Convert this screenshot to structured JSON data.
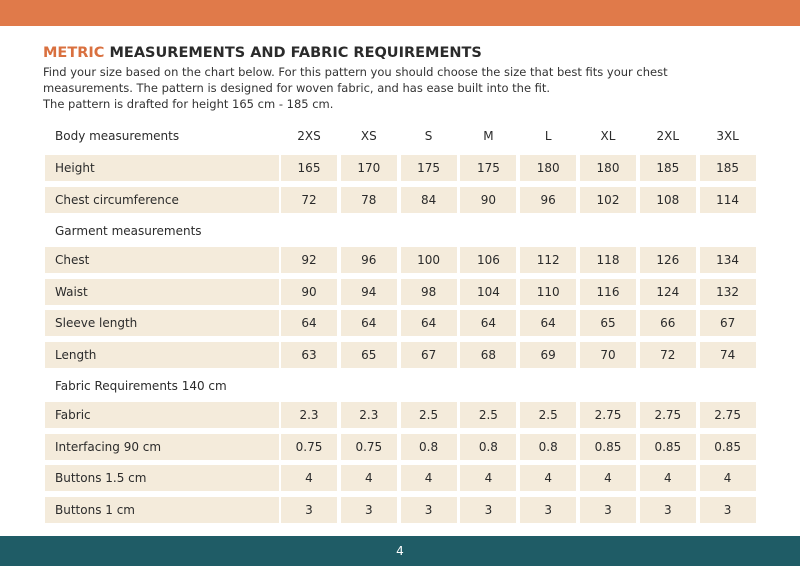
{
  "header": {
    "title_highlight": "METRIC",
    "title": "MEASUREMENTS AND FABRIC REQUIREMENTS",
    "description": [
      "Find your size based on the chart below. For this pattern you should choose the size that best fits your chest",
      "measurements. The pattern is designed for woven fabric, and has ease built into the fit.",
      "The pattern is drafted for height 165 cm - 185 cm."
    ]
  },
  "table": {
    "sizes": [
      "2XS",
      "XS",
      "S",
      "M",
      "L",
      "XL",
      "2XL",
      "3XL"
    ],
    "sections": [
      {
        "title": "Body measurements",
        "rows": [
          {
            "label": "Height",
            "cells": [
              "165",
              "170",
              "175",
              "175",
              "180",
              "180",
              "185",
              "185"
            ]
          },
          {
            "label": "Chest circumference",
            "cells": [
              "72",
              "78",
              "84",
              "90",
              "96",
              "102",
              "108",
              "114"
            ]
          }
        ]
      },
      {
        "title": "Garment measurements",
        "rows": [
          {
            "label": "Chest",
            "cells": [
              "92",
              "96",
              "100",
              "106",
              "112",
              "118",
              "126",
              "134"
            ]
          },
          {
            "label": "Waist",
            "cells": [
              "90",
              "94",
              "98",
              "104",
              "110",
              "116",
              "124",
              "132"
            ]
          },
          {
            "label": "Sleeve length",
            "cells": [
              "64",
              "64",
              "64",
              "64",
              "64",
              "65",
              "66",
              "67"
            ]
          },
          {
            "label": "Length",
            "cells": [
              "63",
              "65",
              "67",
              "68",
              "69",
              "70",
              "72",
              "74"
            ]
          }
        ]
      },
      {
        "title": "Fabric Requirements 140 cm",
        "rows": [
          {
            "label": "Fabric",
            "cells": [
              "2.3",
              "2.3",
              "2.5",
              "2.5",
              "2.5",
              "2.75",
              "2.75",
              "2.75"
            ]
          },
          {
            "label": "Interfacing 90 cm",
            "cells": [
              "0.75",
              "0.75",
              "0.8",
              "0.8",
              "0.8",
              "0.85",
              "0.85",
              "0.85"
            ]
          },
          {
            "label": "Buttons 1.5 cm",
            "cells": [
              "4",
              "4",
              "4",
              "4",
              "4",
              "4",
              "4",
              "4"
            ]
          },
          {
            "label": "Buttons 1 cm",
            "cells": [
              "3",
              "3",
              "3",
              "3",
              "3",
              "3",
              "3",
              "3"
            ]
          }
        ]
      }
    ]
  },
  "footer": {
    "page": "4"
  }
}
